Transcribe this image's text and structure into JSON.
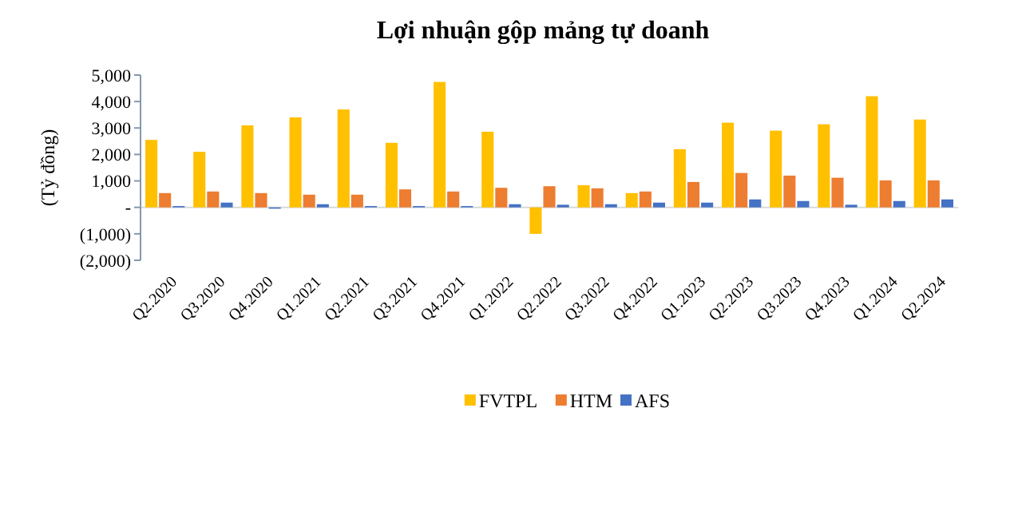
{
  "chart_data": {
    "type": "bar",
    "title": "Lợi nhuận gộp mảng tự doanh",
    "ylabel": "(Tỷ đồng)",
    "categories": [
      "Q2.2020",
      "Q3.2020",
      "Q4.2020",
      "Q1.2021",
      "Q2.2021",
      "Q3.2021",
      "Q4.2021",
      "Q1.2022",
      "Q2.2022",
      "Q3.2022",
      "Q4.2022",
      "Q1.2023",
      "Q2.2023",
      "Q3.2023",
      "Q4.2023",
      "Q1.2024",
      "Q2.2024"
    ],
    "series": [
      {
        "name": "FVTPL",
        "color": "#ffc000",
        "values": [
          2550,
          2100,
          3100,
          3400,
          3700,
          2440,
          4740,
          2860,
          -1000,
          840,
          540,
          2200,
          3200,
          2900,
          3140,
          4200,
          3320
        ]
      },
      {
        "name": "HTM",
        "color": "#ed7d31",
        "values": [
          540,
          600,
          540,
          480,
          480,
          680,
          600,
          740,
          800,
          720,
          600,
          960,
          1300,
          1200,
          1120,
          1020,
          1020
        ]
      },
      {
        "name": "AFS",
        "color": "#4472c4",
        "values": [
          50,
          180,
          -50,
          120,
          50,
          50,
          50,
          120,
          100,
          120,
          180,
          180,
          300,
          240,
          100,
          240,
          300
        ]
      }
    ],
    "ylim": [
      -2000,
      5000
    ],
    "yticks": [
      {
        "value": -2000,
        "label": "(2,000)"
      },
      {
        "value": -1000,
        "label": "(1,000)"
      },
      {
        "value": 0,
        "label": "-"
      },
      {
        "value": 1000,
        "label": "1,000"
      },
      {
        "value": 2000,
        "label": "2,000"
      },
      {
        "value": 3000,
        "label": "3,000"
      },
      {
        "value": 4000,
        "label": "4,000"
      },
      {
        "value": 5000,
        "label": "5,000"
      }
    ],
    "legend": "bottom"
  }
}
